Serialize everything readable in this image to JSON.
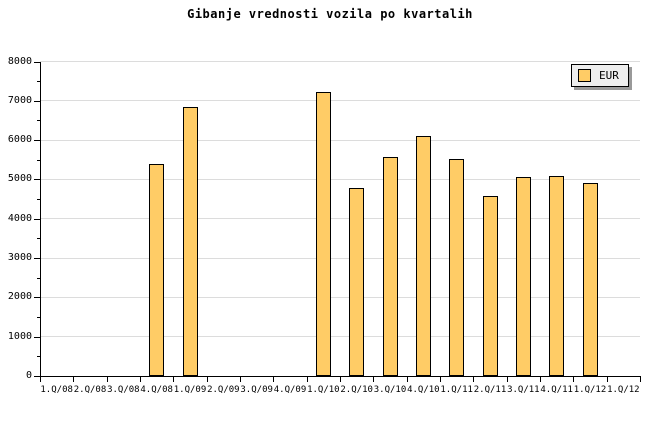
{
  "title": "Gibanje vrednosti vozila po kvartalih",
  "legend": {
    "label": "EUR"
  },
  "colors": {
    "background": "#FFFFFF",
    "bar_fill": "#FFCC66",
    "bar_border": "#000000",
    "grid": "#DCDCDC",
    "axis": "#000000",
    "text": "#000000",
    "legend_bg": "#EEEEEE",
    "legend_border": "#000000",
    "legend_shadow": "#999999"
  },
  "chart_data": {
    "type": "bar",
    "title": "Gibanje vrednosti vozila po kvartalih",
    "xlabel": "",
    "ylabel": "",
    "categories": [
      "1.Q/08",
      "2.Q/08",
      "3.Q/08",
      "4.Q/08",
      "1.Q/09",
      "2.Q/09",
      "3.Q/09",
      "4.Q/09",
      "1.Q/10",
      "2.Q/10",
      "3.Q/10",
      "4.Q/10",
      "1.Q/11",
      "2.Q/11",
      "3.Q/11",
      "4.Q/11",
      "1.Q/12",
      "1.Q/12"
    ],
    "series": [
      {
        "name": "EUR",
        "values": [
          null,
          null,
          null,
          5390,
          6840,
          null,
          null,
          null,
          7230,
          4780,
          5570,
          6110,
          5520,
          4570,
          5070,
          5090,
          4910,
          null
        ]
      }
    ],
    "ylim": [
      0,
      8000
    ],
    "ytick_interval": 1000,
    "ytick_labels": [
      "0",
      "1000",
      "2000",
      "3000",
      "4000",
      "5000",
      "6000",
      "7000",
      "8000"
    ],
    "yminor_interval": 500,
    "grid": true,
    "legend_position": "top-right"
  }
}
